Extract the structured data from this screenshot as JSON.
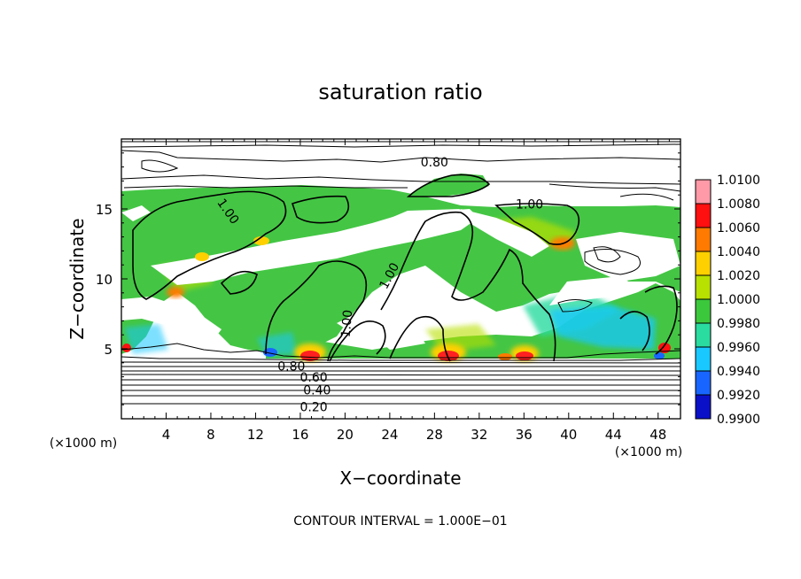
{
  "chart_data": {
    "type": "heatmap",
    "title": "saturation ratio",
    "xlabel": "X−coordinate",
    "ylabel": "Z−coordinate",
    "x_unit_left": "(×1000 m)",
    "x_unit_right": "(×1000 m)",
    "xlim": [
      0,
      50
    ],
    "ylim": [
      0,
      20
    ],
    "x_ticks": [
      4,
      8,
      12,
      16,
      20,
      24,
      28,
      32,
      36,
      40,
      44,
      48
    ],
    "y_ticks": [
      5,
      10,
      15
    ],
    "footer": "CONTOUR INTERVAL = 1.000E−01",
    "colorbar": {
      "levels": [
        "1.0100",
        "1.0080",
        "1.0060",
        "1.0040",
        "1.0020",
        "1.0000",
        "0.9980",
        "0.9960",
        "0.9940",
        "0.9920",
        "0.9900"
      ],
      "colors": [
        "#ff9aa8",
        "#ff1010",
        "#ff7a00",
        "#ffd000",
        "#b8e000",
        "#3cc83c",
        "#2adca0",
        "#19c8ff",
        "#1866ff",
        "#0a10c8",
        "#5a0096"
      ]
    },
    "contour_labels": [
      {
        "text": "0.80",
        "x": 28,
        "y": 18.3
      },
      {
        "text": "1.00",
        "x": 9.5,
        "y": 14.8,
        "rotate": 55
      },
      {
        "text": "1.00",
        "x": 36.5,
        "y": 15.3
      },
      {
        "text": "1.00",
        "x": 24.0,
        "y": 10.2,
        "rotate": -62
      },
      {
        "text": "1.00",
        "x": 20.2,
        "y": 6.8,
        "rotate": -85
      },
      {
        "text": "0.80",
        "x": 15.2,
        "y": 3.7
      },
      {
        "text": "0.60",
        "x": 17.2,
        "y": 2.9
      },
      {
        "text": "0.40",
        "x": 17.5,
        "y": 2.0
      },
      {
        "text": "0.20",
        "x": 17.2,
        "y": 0.8
      }
    ]
  }
}
